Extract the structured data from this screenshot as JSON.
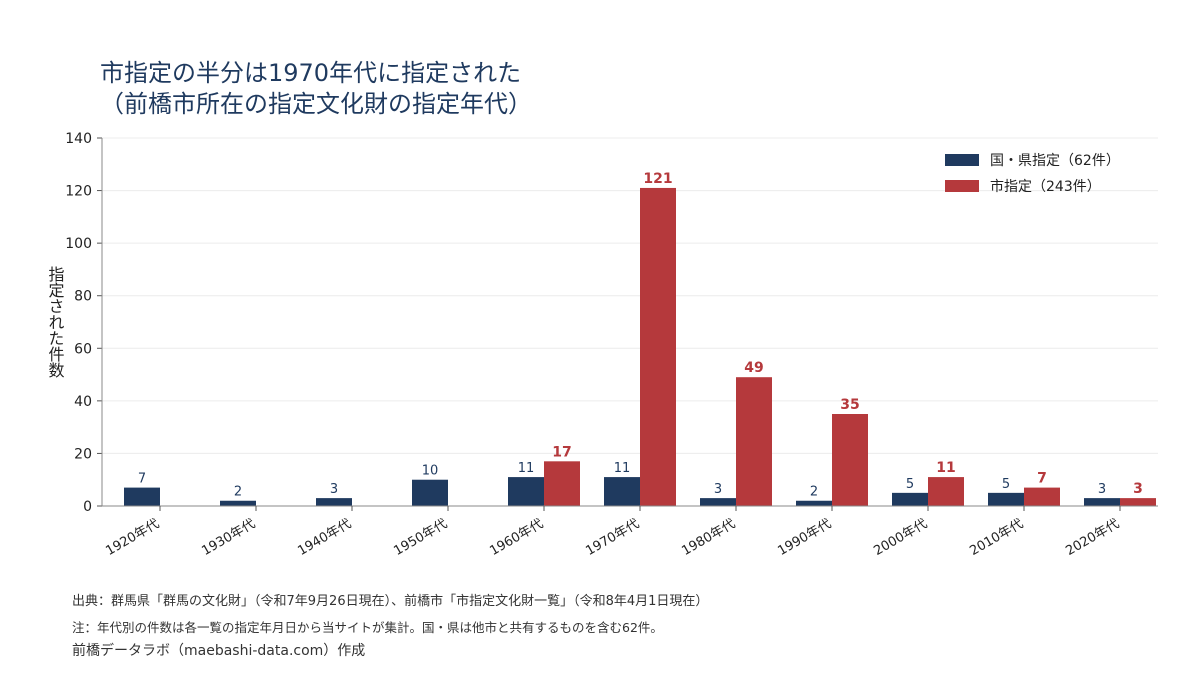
{
  "header": {
    "title_line1": "市指定の半分は1970年代に指定された",
    "title_line2": "（前橋市所在の指定文化財の指定年代）"
  },
  "chart_data": {
    "type": "bar",
    "ylabel": "指定された件数",
    "xlabel": "",
    "ylim": [
      0,
      140
    ],
    "yticks": [
      0,
      20,
      40,
      60,
      80,
      100,
      120,
      140
    ],
    "grid": true,
    "legend_position": "top-right",
    "categories": [
      "1920年代",
      "1930年代",
      "1940年代",
      "1950年代",
      "1960年代",
      "1970年代",
      "1980年代",
      "1990年代",
      "2000年代",
      "2010年代",
      "2020年代"
    ],
    "series": [
      {
        "name": "国・県指定（62件）",
        "color": "#1f3a5f",
        "values": [
          7,
          2,
          3,
          10,
          11,
          11,
          3,
          2,
          5,
          5,
          3
        ]
      },
      {
        "name": "市指定（243件）",
        "color": "#b5393c",
        "values": [
          0,
          0,
          0,
          0,
          17,
          121,
          49,
          35,
          11,
          7,
          3
        ]
      }
    ]
  },
  "footer": {
    "source": "出典：群馬県「群馬の文化財」（令和7年9月26日現在）、前橋市「市指定文化財一覧」（令和8年4月1日現在）",
    "note": "注：年代別の件数は各一覧の指定年月日から当サイトが集計。国・県は他市と共有するものを含む62件。",
    "credit": "前橋データラボ（maebashi-data.com）作成"
  }
}
